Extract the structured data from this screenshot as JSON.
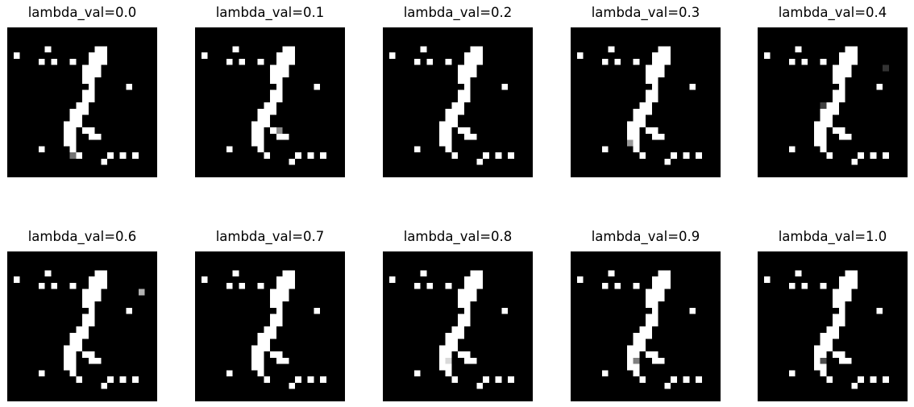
{
  "figure": {
    "background": "#ffffff",
    "image_background": "#000000",
    "grid_size": 24,
    "panels": [
      {
        "title": "lambda_val=0.0",
        "gray_pixels": [
          {
            "r": 20,
            "c": 10,
            "v": 0.45
          }
        ]
      },
      {
        "title": "lambda_val=0.1",
        "gray_pixels": [
          {
            "r": 16,
            "c": 13,
            "v": 0.55
          }
        ]
      },
      {
        "title": "lambda_val=0.2",
        "gray_pixels": []
      },
      {
        "title": "lambda_val=0.3",
        "gray_pixels": [
          {
            "r": 18,
            "c": 9,
            "v": 0.6
          }
        ]
      },
      {
        "title": "lambda_val=0.4",
        "gray_pixels": [
          {
            "r": 6,
            "c": 20,
            "v": 0.2
          },
          {
            "r": 12,
            "c": 10,
            "v": 0.25
          }
        ]
      },
      {
        "title": "lambda_val=0.6",
        "gray_pixels": [
          {
            "r": 6,
            "c": 21,
            "v": 0.7
          }
        ]
      },
      {
        "title": "lambda_val=0.7",
        "gray_pixels": []
      },
      {
        "title": "lambda_val=0.8",
        "gray_pixels": [
          {
            "r": 17,
            "c": 10,
            "v": 0.85
          }
        ]
      },
      {
        "title": "lambda_val=0.9",
        "gray_pixels": [
          {
            "r": 17,
            "c": 10,
            "v": 0.5
          }
        ]
      },
      {
        "title": "lambda_val=1.0",
        "gray_pixels": [
          {
            "r": 17,
            "c": 10,
            "v": 0.3
          }
        ]
      }
    ],
    "white_pixels": [
      [
        3,
        6
      ],
      [
        3,
        14
      ],
      [
        3,
        15
      ],
      [
        4,
        1
      ],
      [
        4,
        13
      ],
      [
        4,
        14
      ],
      [
        4,
        15
      ],
      [
        5,
        5
      ],
      [
        5,
        7
      ],
      [
        5,
        10
      ],
      [
        5,
        13
      ],
      [
        5,
        14
      ],
      [
        5,
        15
      ],
      [
        6,
        12
      ],
      [
        6,
        13
      ],
      [
        6,
        14
      ],
      [
        7,
        12
      ],
      [
        7,
        13
      ],
      [
        7,
        14
      ],
      [
        8,
        12
      ],
      [
        8,
        13
      ],
      [
        9,
        13
      ],
      [
        9,
        19
      ],
      [
        10,
        12
      ],
      [
        10,
        13
      ],
      [
        11,
        12
      ],
      [
        11,
        13
      ],
      [
        12,
        11
      ],
      [
        12,
        12
      ],
      [
        13,
        10
      ],
      [
        13,
        11
      ],
      [
        13,
        12
      ],
      [
        14,
        10
      ],
      [
        14,
        11
      ],
      [
        15,
        9
      ],
      [
        15,
        10
      ],
      [
        15,
        11
      ],
      [
        16,
        9
      ],
      [
        16,
        10
      ],
      [
        16,
        12
      ],
      [
        16,
        13
      ],
      [
        17,
        9
      ],
      [
        17,
        10
      ],
      [
        17,
        13
      ],
      [
        17,
        14
      ],
      [
        18,
        9
      ],
      [
        18,
        10
      ],
      [
        19,
        5
      ],
      [
        19,
        10
      ],
      [
        20,
        11
      ],
      [
        20,
        16
      ],
      [
        20,
        18
      ],
      [
        20,
        20
      ],
      [
        21,
        15
      ]
    ]
  }
}
